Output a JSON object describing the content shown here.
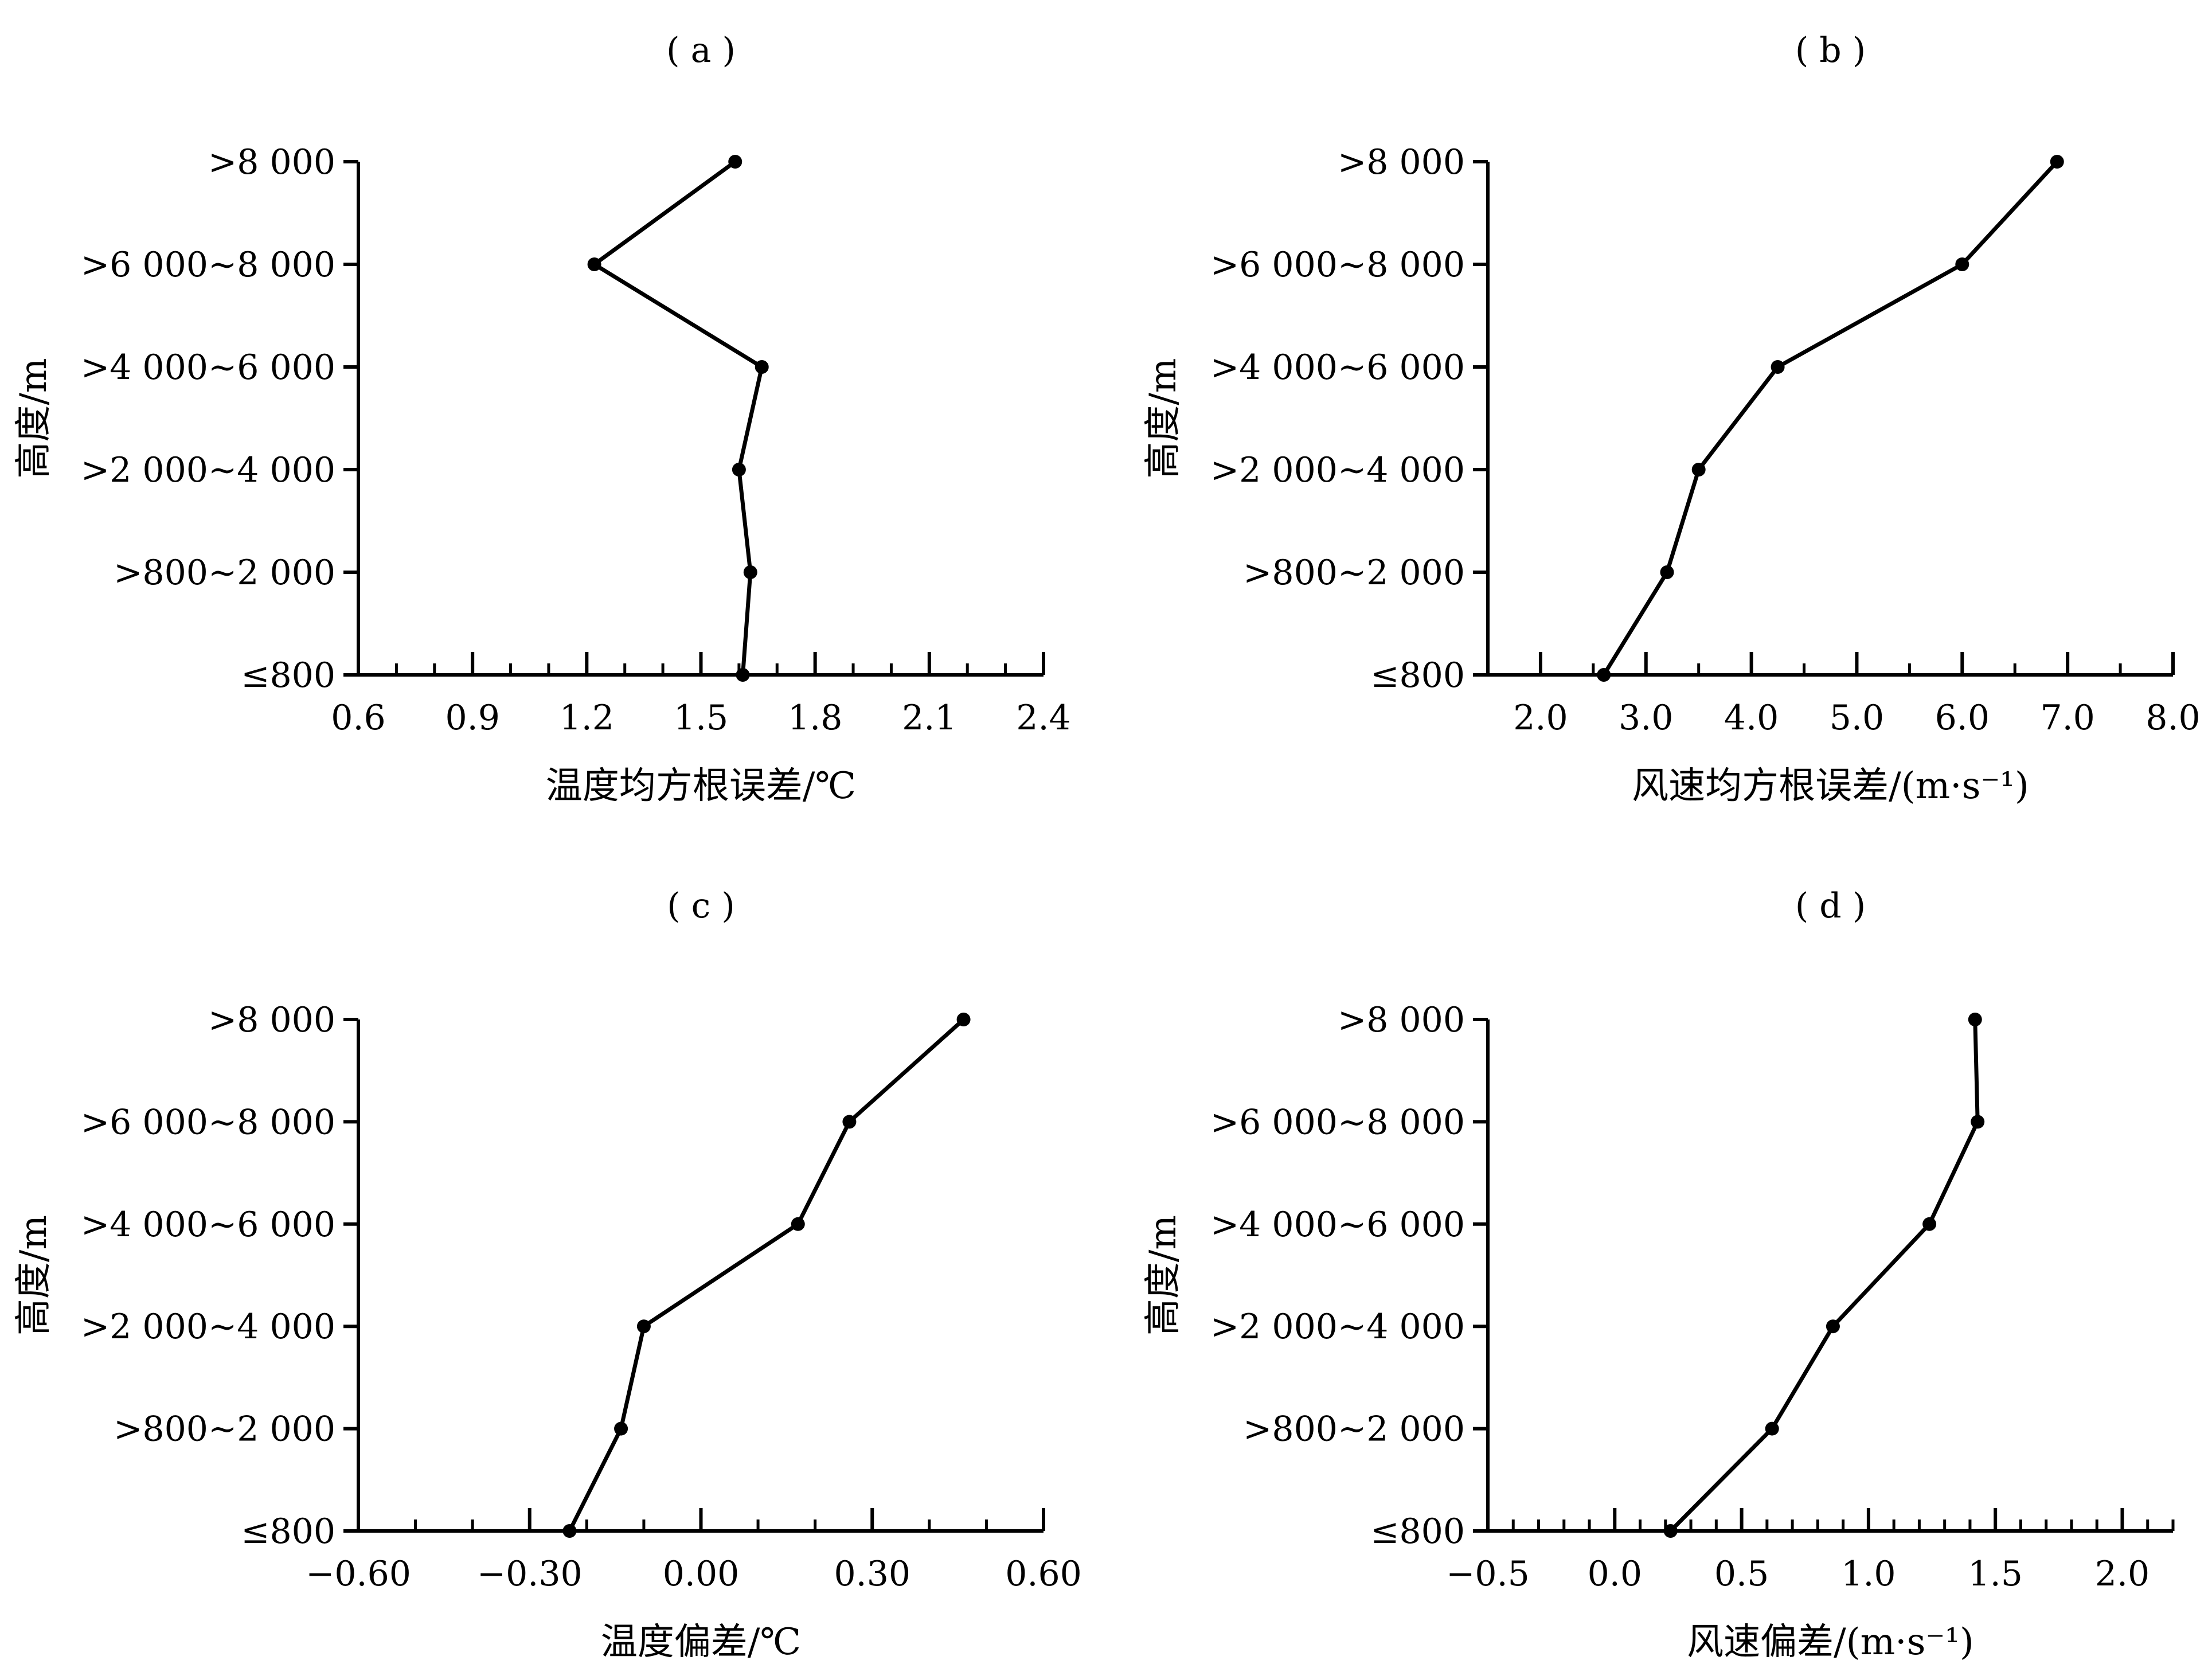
{
  "chart_data": [
    {
      "type": "line",
      "panel_label": "( a )",
      "xlabel": "温度均方根误差/℃",
      "ylabel": "高度/m",
      "categories": [
        ">8 000",
        ">6 000~8 000",
        ">4 000~6 000",
        ">2 000~4 000",
        ">800~2 000",
        "≤800"
      ],
      "x_ticks": [
        "0.6",
        "0.9",
        "1.2",
        "1.5",
        "1.8",
        "2.1",
        "2.4"
      ],
      "xlim": [
        0.6,
        2.4
      ],
      "x_minor_step": 0.1,
      "values": [
        1.59,
        1.22,
        1.66,
        1.6,
        1.63,
        1.61
      ],
      "grid": false
    },
    {
      "type": "line",
      "panel_label": "( b )",
      "xlabel": "风速均方根误差/(m·s⁻¹)",
      "ylabel": "高度/m",
      "categories": [
        ">8 000",
        ">6 000~8 000",
        ">4 000~6 000",
        ">2 000~4 000",
        ">800~2 000",
        "≤800"
      ],
      "x_ticks": [
        "2.0",
        "3.0",
        "4.0",
        "5.0",
        "6.0",
        "7.0",
        "8.0"
      ],
      "xlim": [
        1.5,
        8.0
      ],
      "x_minor_step": 0.5,
      "values": [
        6.9,
        6.0,
        4.25,
        3.5,
        3.2,
        2.6
      ],
      "grid": false
    },
    {
      "type": "line",
      "panel_label": "( c )",
      "xlabel": "温度偏差/℃",
      "ylabel": "高度/m",
      "categories": [
        ">8 000",
        ">6 000~8 000",
        ">4 000~6 000",
        ">2 000~4 000",
        ">800~2 000",
        "≤800"
      ],
      "x_ticks": [
        "−0.60",
        "−0.30",
        "0.00",
        "0.30",
        "0.60"
      ],
      "xlim": [
        -0.6,
        0.6
      ],
      "x_minor_step": 0.1,
      "values": [
        0.46,
        0.26,
        0.17,
        -0.1,
        -0.14,
        -0.23
      ],
      "grid": false
    },
    {
      "type": "line",
      "panel_label": "( d )",
      "xlabel": "风速偏差/(m·s⁻¹)",
      "ylabel": "高度/m",
      "categories": [
        ">8 000",
        ">6 000~8 000",
        ">4 000~6 000",
        ">2 000~4 000",
        ">800~2 000",
        "≤800"
      ],
      "x_ticks": [
        "−0.5",
        "0.0",
        "0.5",
        "1.0",
        "1.5",
        "2.0"
      ],
      "xlim": [
        -0.5,
        2.2
      ],
      "x_minor_step": 0.1,
      "values": [
        1.42,
        1.43,
        1.24,
        0.86,
        0.62,
        0.22
      ],
      "grid": false
    }
  ]
}
